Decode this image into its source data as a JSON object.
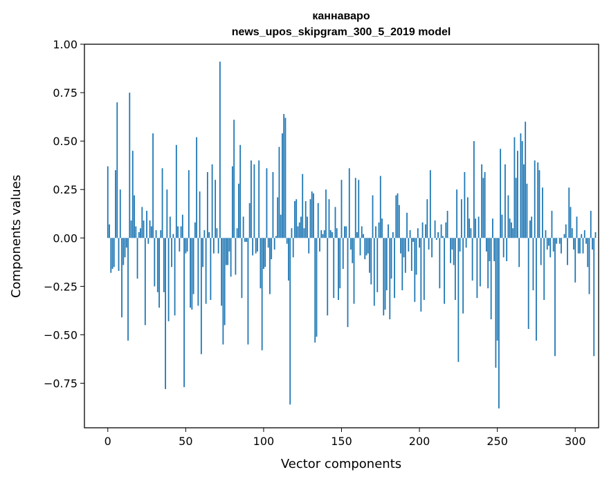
{
  "chart_data": {
    "type": "bar",
    "title": "каннаваро",
    "subtitle": "news_upos_skipgram_300_5_2019 model",
    "xlabel": "Vector components",
    "ylabel": "Components values",
    "xlim": [
      -15,
      315
    ],
    "ylim": [
      -0.98,
      1.0
    ],
    "xticks": [
      0,
      50,
      100,
      150,
      200,
      250,
      300
    ],
    "yticks": [
      -0.75,
      -0.5,
      -0.25,
      0.0,
      0.25,
      0.5,
      0.75,
      1.0
    ],
    "xtick_labels": [
      "0",
      "50",
      "100",
      "150",
      "200",
      "250",
      "300"
    ],
    "ytick_labels": [
      "−0.75",
      "−0.50",
      "−0.25",
      "0.00",
      "0.25",
      "0.50",
      "0.75",
      "1.00"
    ],
    "grid": false,
    "legend": "none",
    "color": "#1f77b4",
    "x_start": 0,
    "values": [
      0.37,
      0.07,
      -0.18,
      -0.16,
      -0.15,
      0.35,
      0.7,
      -0.17,
      0.25,
      -0.41,
      -0.14,
      -0.1,
      -0.05,
      -0.53,
      0.75,
      0.09,
      0.45,
      0.22,
      0.06,
      -0.21,
      0.03,
      0.05,
      0.16,
      0.09,
      -0.45,
      0.14,
      -0.03,
      0.09,
      0.06,
      0.54,
      -0.25,
      0.04,
      -0.28,
      -0.36,
      0.04,
      0.36,
      -0.28,
      -0.78,
      0.25,
      -0.43,
      0.11,
      -0.15,
      0.02,
      -0.4,
      0.48,
      0.06,
      -0.07,
      0.06,
      0.12,
      -0.77,
      -0.08,
      -0.07,
      0.35,
      -0.36,
      -0.37,
      -0.29,
      0.08,
      0.52,
      -0.35,
      0.24,
      -0.6,
      -0.15,
      0.04,
      -0.34,
      0.34,
      0.03,
      -0.32,
      0.38,
      -0.08,
      0.3,
      0.05,
      -0.08,
      0.91,
      -0.35,
      -0.55,
      -0.45,
      -0.14,
      -0.14,
      -0.07,
      -0.2,
      0.37,
      0.61,
      -0.19,
      0.05,
      0.28,
      0.48,
      -0.31,
      0.11,
      -0.02,
      -0.02,
      -0.55,
      0.18,
      0.4,
      -0.09,
      0.38,
      -0.08,
      -0.07,
      0.4,
      -0.26,
      -0.58,
      -0.16,
      -0.15,
      0.36,
      -0.05,
      -0.29,
      -0.11,
      0.34,
      -0.06,
      0.01,
      0.21,
      0.47,
      0.12,
      0.54,
      0.64,
      0.62,
      -0.03,
      -0.22,
      -0.86,
      0.05,
      -0.1,
      0.19,
      0.2,
      0.06,
      0.08,
      0.11,
      0.33,
      0.05,
      0.19,
      0.11,
      -0.08,
      0.2,
      0.24,
      0.23,
      -0.54,
      -0.51,
      0.18,
      -0.07,
      0.04,
      0.02,
      0.04,
      0.25,
      -0.4,
      0.2,
      0.04,
      0.03,
      -0.31,
      0.16,
      0.05,
      -0.32,
      -0.26,
      0.3,
      -0.16,
      0.06,
      0.06,
      -0.46,
      0.36,
      -0.06,
      -0.13,
      -0.34,
      0.31,
      0.03,
      0.3,
      -0.09,
      0.06,
      0.02,
      -0.11,
      -0.09,
      -0.08,
      -0.18,
      -0.24,
      0.22,
      -0.35,
      0.06,
      -0.28,
      0.08,
      0.32,
      0.1,
      -0.4,
      -0.37,
      -0.27,
      0.07,
      -0.42,
      -0.21,
      0.03,
      -0.31,
      0.22,
      0.23,
      0.17,
      -0.08,
      -0.27,
      -0.1,
      -0.18,
      0.13,
      -0.07,
      0.04,
      -0.17,
      -0.02,
      -0.33,
      -0.19,
      0.05,
      -0.05,
      -0.38,
      0.08,
      -0.32,
      0.07,
      0.2,
      -0.06,
      0.35,
      -0.1,
      0.0,
      0.09,
      -0.01,
      0.03,
      -0.26,
      0.07,
      0.01,
      -0.34,
      0.08,
      0.14,
      0.0,
      -0.13,
      -0.06,
      -0.14,
      -0.32,
      0.25,
      -0.64,
      -0.07,
      0.2,
      -0.39,
      0.34,
      -0.05,
      0.21,
      0.1,
      0.05,
      -0.22,
      0.5,
      0.1,
      -0.31,
      0.11,
      -0.25,
      0.38,
      0.31,
      0.34,
      -0.07,
      -0.26,
      -0.12,
      -0.42,
      0.1,
      -0.12,
      -0.67,
      -0.53,
      -0.88,
      0.46,
      0.12,
      -0.1,
      0.38,
      -0.12,
      0.22,
      0.1,
      0.08,
      0.05,
      0.52,
      0.31,
      0.45,
      -0.15,
      0.54,
      0.5,
      0.38,
      0.6,
      0.28,
      -0.47,
      0.09,
      0.11,
      -0.27,
      0.4,
      -0.53,
      0.39,
      0.35,
      -0.14,
      0.26,
      -0.32,
      0.04,
      -0.06,
      -0.04,
      -0.1,
      0.14,
      -0.07,
      -0.61,
      -0.03,
      0.0,
      -0.03,
      -0.08,
      0.0,
      0.02,
      0.07,
      -0.14,
      0.26,
      0.16,
      0.05,
      -0.06,
      -0.23,
      0.11,
      -0.08,
      -0.08,
      0.02,
      -0.08,
      0.04,
      -0.03,
      -0.15,
      -0.29,
      0.14,
      -0.06,
      -0.61,
      0.03
    ]
  }
}
